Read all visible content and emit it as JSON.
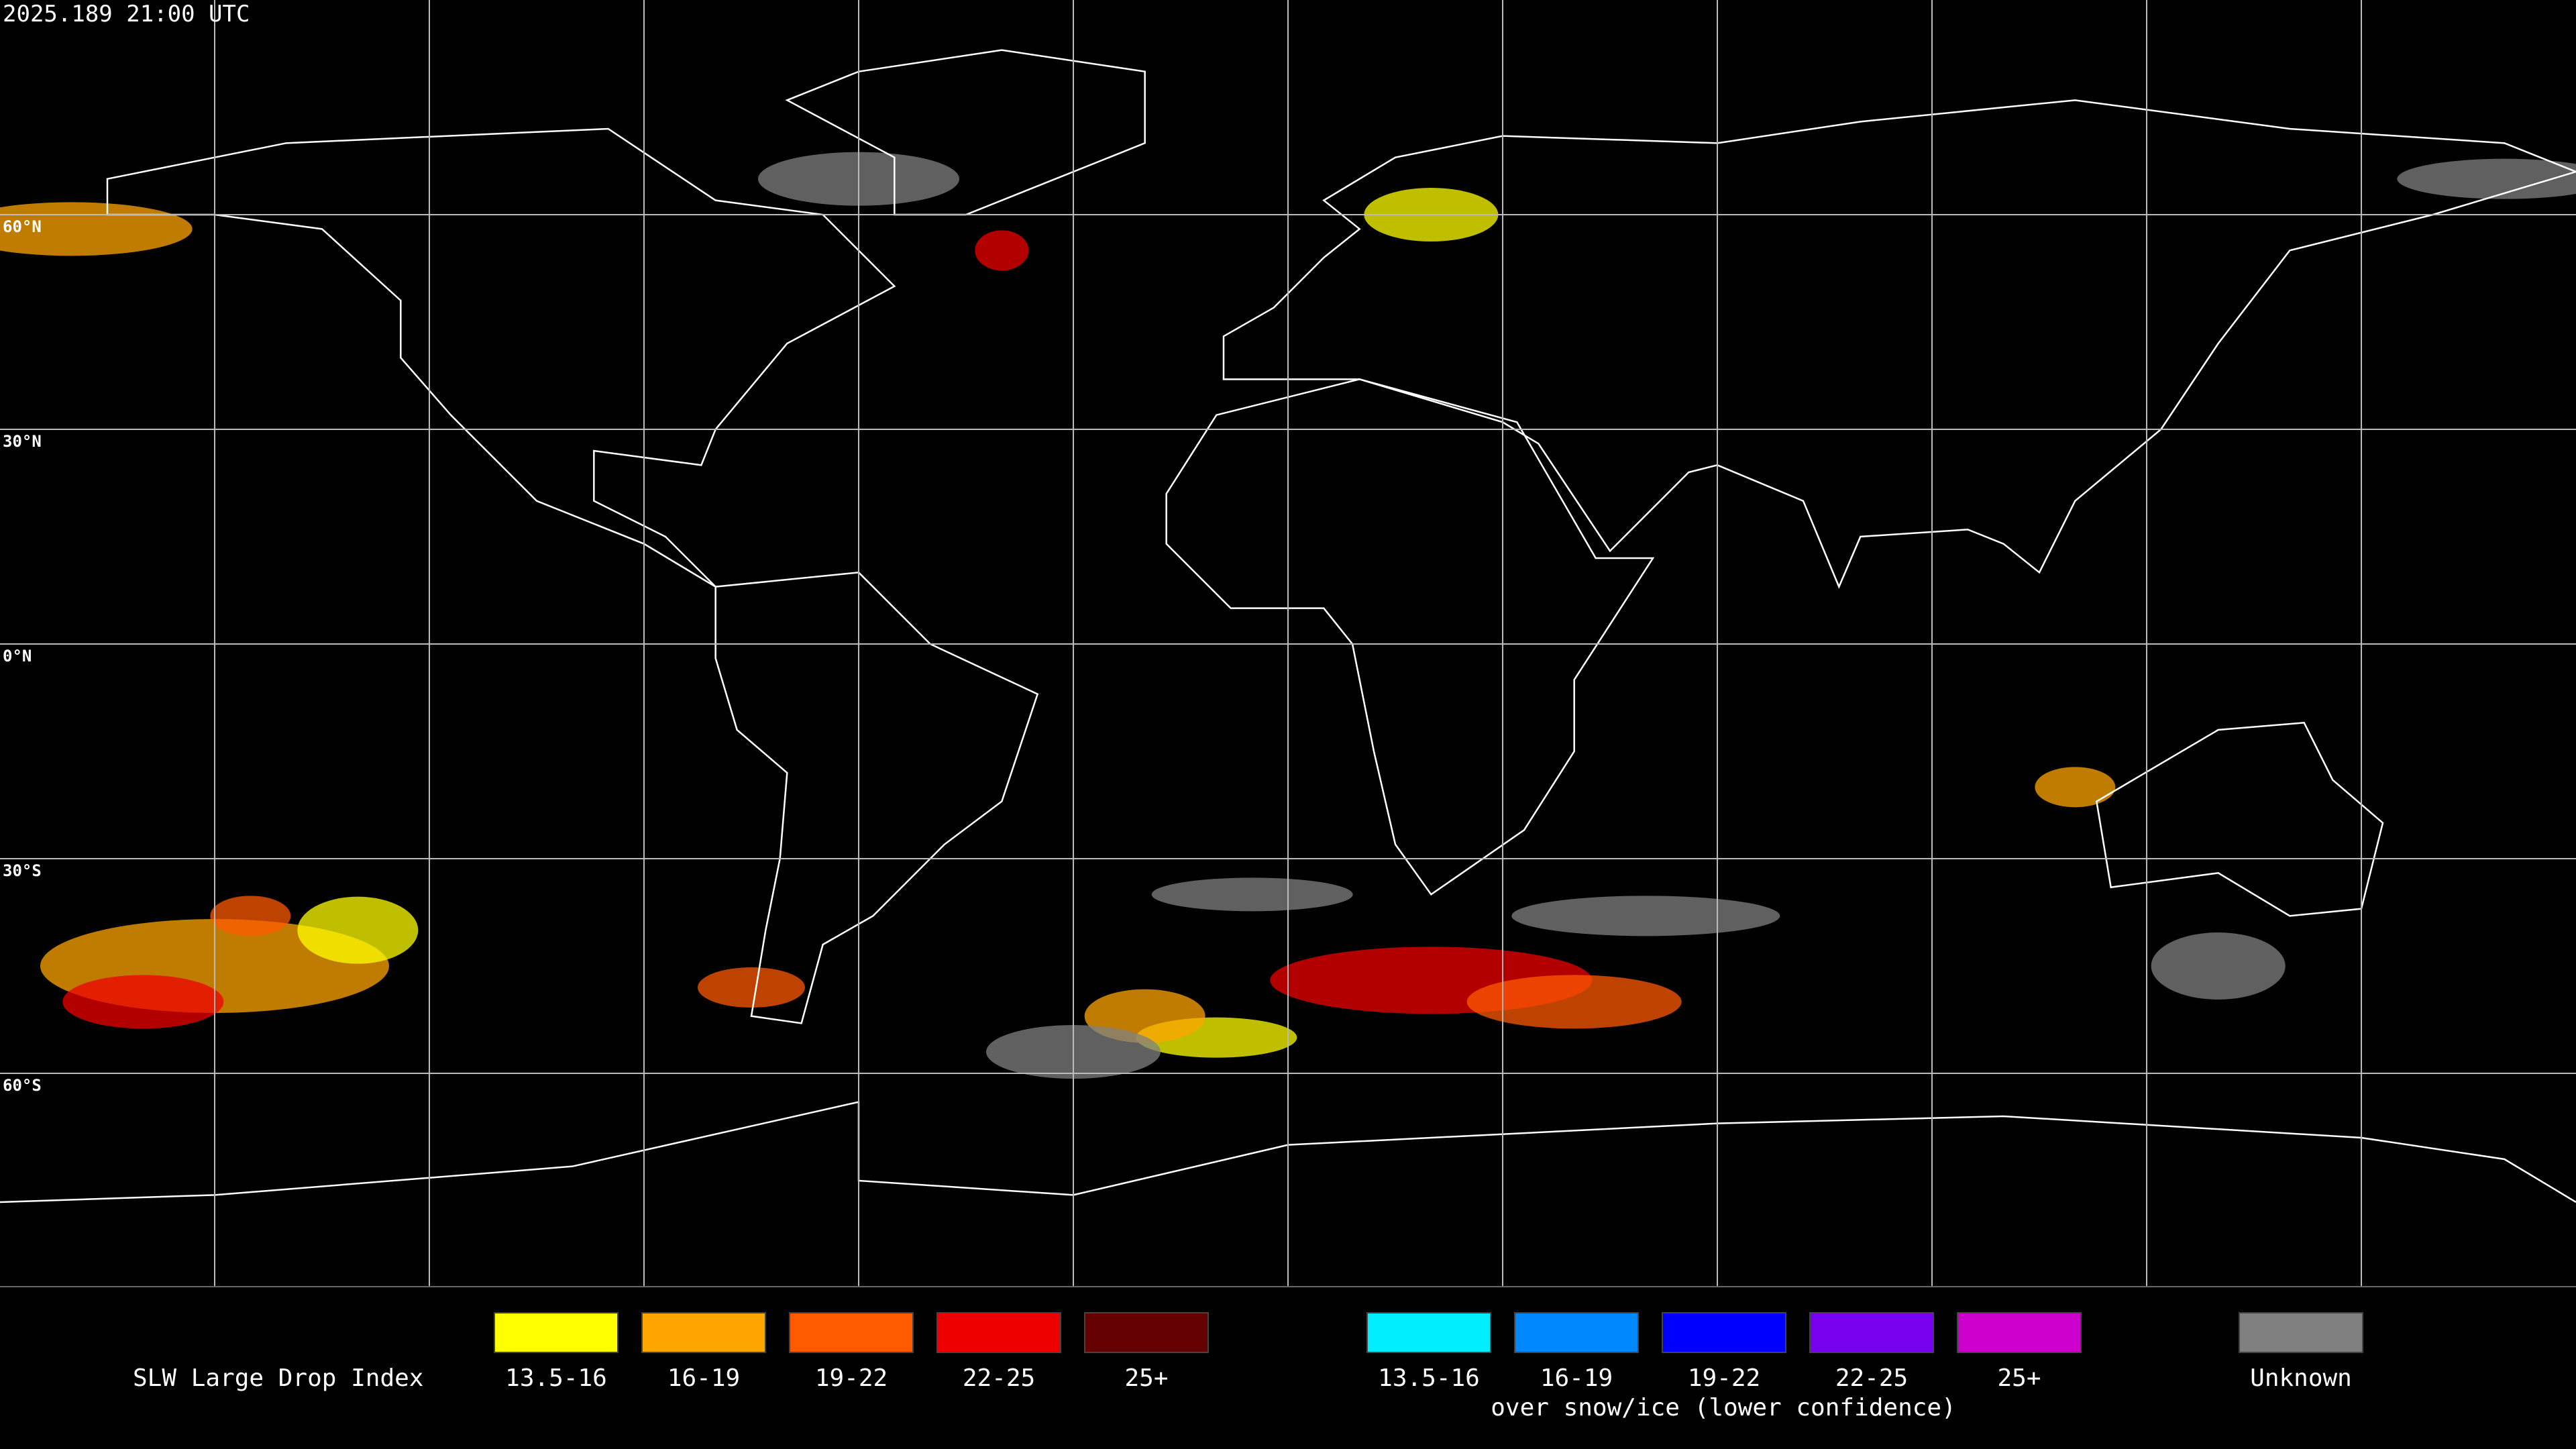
{
  "header": {
    "timestamp": "2025.189 21:00 UTC"
  },
  "grid": {
    "lat_labels": [
      "60°N",
      "30°N",
      "0°N",
      "30°S",
      "60°S"
    ]
  },
  "legend": {
    "title": "SLW Large Drop Index",
    "water_classes": [
      {
        "label": "13.5-16",
        "color": "#ffff00"
      },
      {
        "label": "16-19",
        "color": "#ffa500"
      },
      {
        "label": "19-22",
        "color": "#ff5a00"
      },
      {
        "label": "22-25",
        "color": "#ee0000"
      },
      {
        "label": "25+",
        "color": "#640000"
      }
    ],
    "ice_classes": [
      {
        "label": "13.5-16",
        "color": "#00eeff"
      },
      {
        "label": "16-19",
        "color": "#0088ff"
      },
      {
        "label": "19-22",
        "color": "#0000ff"
      },
      {
        "label": "22-25",
        "color": "#7700ee"
      },
      {
        "label": "25+",
        "color": "#cc00cc"
      }
    ],
    "ice_note": "over snow/ice (lower confidence)",
    "unknown": {
      "label": "Unknown",
      "color": "#808080"
    }
  }
}
